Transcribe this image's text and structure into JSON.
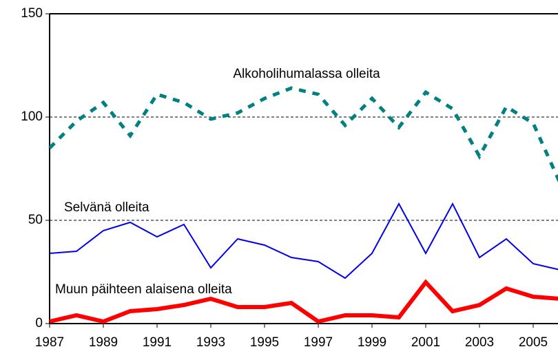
{
  "chart_data": {
    "type": "line",
    "x": [
      1987,
      1988,
      1989,
      1990,
      1991,
      1992,
      1993,
      1994,
      1995,
      1996,
      1997,
      1998,
      1999,
      2000,
      2001,
      2002,
      2003,
      2004,
      2005,
      2006
    ],
    "series": [
      {
        "name": "Alkoholihumalassa olleita",
        "color": "#008080",
        "dash": true,
        "width": 5,
        "values": [
          85,
          98,
          107,
          91,
          111,
          107,
          99,
          102,
          109,
          114,
          111,
          96,
          109,
          95,
          112,
          104,
          81,
          105,
          97,
          68
        ]
      },
      {
        "name": "Selvänä olleita",
        "color": "#0000ee",
        "dash": false,
        "width": 2,
        "values": [
          34,
          35,
          45,
          49,
          42,
          48,
          27,
          41,
          38,
          32,
          30,
          22,
          34,
          58,
          34,
          58,
          32,
          41,
          29,
          26
        ]
      },
      {
        "name": "Muun päihteen alaisena olleita",
        "color": "#ff0000",
        "dash": false,
        "width": 6,
        "values": [
          1,
          4,
          1,
          6,
          7,
          9,
          12,
          8,
          8,
          10,
          1,
          4,
          4,
          3,
          20,
          6,
          9,
          17,
          13,
          12
        ]
      }
    ],
    "xlim": [
      1987,
      2006
    ],
    "xticks": [
      1987,
      1989,
      1991,
      1993,
      1995,
      1997,
      1999,
      2001,
      2003,
      2005
    ],
    "ylim": [
      0,
      150
    ],
    "yticks": [
      0,
      50,
      100,
      150
    ],
    "grid": true
  }
}
